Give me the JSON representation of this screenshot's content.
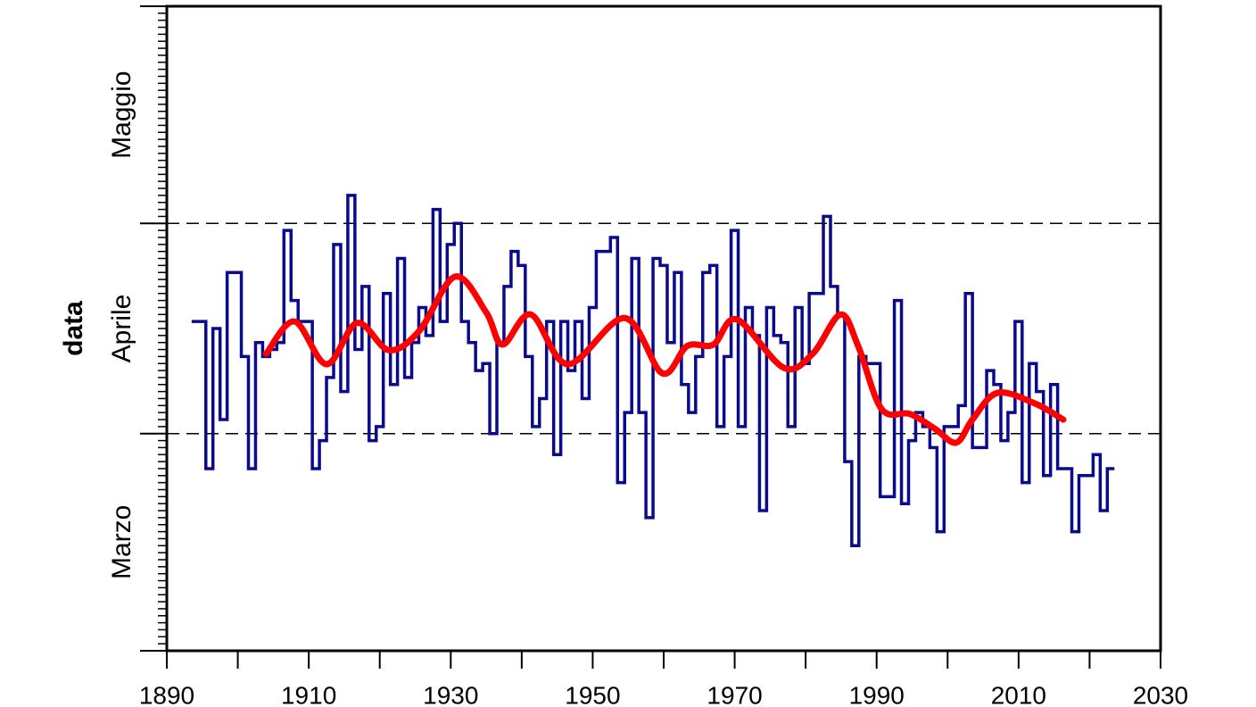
{
  "chart_data": [
    {
      "type": "step",
      "ylabel": "data",
      "x": [
        1894,
        1895,
        1896,
        1897,
        1898,
        1899,
        1900,
        1901,
        1902,
        1903,
        1904,
        1905,
        1906,
        1907,
        1908,
        1909,
        1910,
        1911,
        1912,
        1913,
        1914,
        1915,
        1916,
        1917,
        1918,
        1919,
        1920,
        1921,
        1922,
        1923,
        1924,
        1925,
        1926,
        1927,
        1928,
        1929,
        1930,
        1931,
        1932,
        1933,
        1934,
        1935,
        1936,
        1937,
        1938,
        1939,
        1940,
        1941,
        1942,
        1943,
        1944,
        1945,
        1946,
        1947,
        1948,
        1949,
        1950,
        1951,
        1952,
        1953,
        1954,
        1955,
        1956,
        1957,
        1958,
        1959,
        1960,
        1961,
        1962,
        1963,
        1964,
        1965,
        1966,
        1967,
        1968,
        1969,
        1970,
        1971,
        1972,
        1973,
        1974,
        1975,
        1976,
        1977,
        1978,
        1979,
        1980,
        1981,
        1982,
        1983,
        1984,
        1985,
        1986,
        1987,
        1988,
        1989,
        1990,
        1991,
        1992,
        1993,
        1994,
        1995,
        1996,
        1997,
        1998,
        1999,
        2000,
        2001,
        2002,
        2003,
        2004,
        2005,
        2006,
        2007,
        2008,
        2009,
        2010,
        2011,
        2012,
        2013,
        2014,
        2015,
        2016,
        2017,
        2018,
        2019,
        2020,
        2021,
        2022,
        2023
      ],
      "values": [
        107,
        107,
        86,
        106,
        93,
        114,
        114,
        102,
        86,
        104,
        102,
        103,
        104,
        120,
        110,
        107,
        107,
        86,
        90,
        99,
        118,
        97,
        125,
        103,
        112,
        90,
        92,
        111,
        98,
        116,
        99,
        104,
        109,
        105,
        123,
        107,
        118,
        121,
        107,
        104,
        100,
        101,
        91,
        104,
        112,
        117,
        115,
        102,
        92,
        96,
        107,
        88,
        107,
        100,
        107,
        96,
        109,
        117,
        117,
        119,
        84,
        94,
        116,
        94,
        79,
        116,
        115,
        104,
        114,
        98,
        94,
        102,
        114,
        115,
        92,
        102,
        120,
        92,
        109,
        105,
        80,
        109,
        105,
        104,
        92,
        109,
        101,
        111,
        111,
        122,
        112,
        108,
        87,
        75,
        102,
        101,
        101,
        82,
        82,
        110,
        81,
        90,
        94,
        92,
        89,
        77,
        92,
        92,
        95,
        111,
        89,
        89,
        100,
        98,
        90,
        94,
        107,
        84,
        101,
        97,
        85,
        98,
        86,
        86,
        77,
        85,
        85,
        88,
        80,
        86
      ],
      "color": "#0a0a8c",
      "xlim": [
        1890,
        2030
      ],
      "xticks": [
        1890,
        1910,
        1930,
        1950,
        1970,
        1990,
        2010,
        2030
      ],
      "ylim": [
        60,
        152
      ],
      "yticks": [
        {
          "value": 75.5,
          "label": "Marzo"
        },
        {
          "value": 106,
          "label": "Aprile"
        },
        {
          "value": 136.5,
          "label": "Maggio"
        }
      ],
      "month_boundaries": [
        60,
        91,
        121,
        152
      ],
      "minor_tick_step": 1
    },
    {
      "type": "smooth",
      "x": [
        1904,
        1908,
        1912.5,
        1916.8,
        1921.3,
        1925.6,
        1930.6,
        1935,
        1937.3,
        1941.3,
        1946.5,
        1954.5,
        1959.8,
        1963.3,
        1967,
        1970.3,
        1976.9,
        1981,
        1984.9,
        1987.4,
        1990.7,
        1994.7,
        1998.2,
        2001.2,
        2003.5,
        2007,
        2012.3,
        2016.3
      ],
      "values": [
        102.4,
        107,
        100.9,
        106.8,
        102.9,
        105.7,
        113.4,
        108.3,
        103.7,
        108,
        100.9,
        107.5,
        99.6,
        103.5,
        103.7,
        107.3,
        100.4,
        102.4,
        108,
        103.5,
        94.5,
        93.8,
        91.7,
        89.7,
        93,
        96.8,
        95.3,
        93
      ],
      "color": "#ff0000"
    }
  ]
}
